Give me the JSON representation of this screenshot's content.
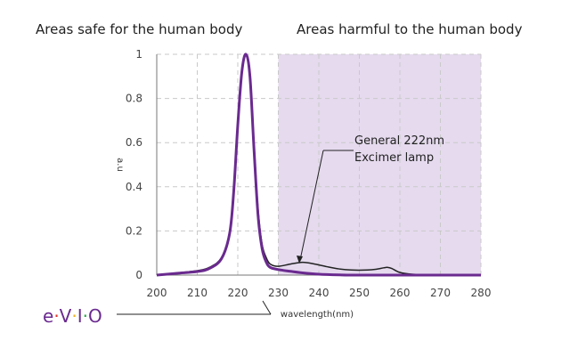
{
  "chart_data": {
    "type": "line",
    "x_ticks": [
      200,
      210,
      220,
      230,
      240,
      250,
      260,
      270,
      280
    ],
    "y_ticks": [
      0,
      0.2,
      0.4,
      0.6,
      0.8,
      1
    ],
    "xlim": [
      200,
      280
    ],
    "ylim": [
      0,
      1
    ],
    "xlabel": "wavelength(nm)",
    "ylabel": "a.u",
    "grid": true,
    "harmful_region": [
      230,
      280
    ],
    "region_labels": {
      "safe": "Areas safe for the human body",
      "harmful": "Areas harmful to the human body"
    },
    "series": [
      {
        "name": "General 222nm Excimer lamp",
        "color": "#222222",
        "points": [
          [
            200,
            0.0
          ],
          [
            205,
            0.01
          ],
          [
            210,
            0.02
          ],
          [
            213,
            0.035
          ],
          [
            216,
            0.08
          ],
          [
            218,
            0.2
          ],
          [
            219,
            0.4
          ],
          [
            220,
            0.7
          ],
          [
            221,
            0.93
          ],
          [
            222,
            1.0
          ],
          [
            223,
            0.92
          ],
          [
            224,
            0.6
          ],
          [
            225,
            0.3
          ],
          [
            226,
            0.14
          ],
          [
            227,
            0.08
          ],
          [
            228,
            0.05
          ],
          [
            230,
            0.04
          ],
          [
            233,
            0.05
          ],
          [
            236,
            0.058
          ],
          [
            239,
            0.05
          ],
          [
            242,
            0.038
          ],
          [
            245,
            0.028
          ],
          [
            248,
            0.023
          ],
          [
            252,
            0.023
          ],
          [
            254,
            0.026
          ],
          [
            256,
            0.033
          ],
          [
            257,
            0.035
          ],
          [
            258,
            0.03
          ],
          [
            260,
            0.012
          ],
          [
            263,
            0.004
          ],
          [
            268,
            0.001
          ],
          [
            280,
            0.0
          ]
        ]
      },
      {
        "color": "#6a2a8f",
        "points": [
          [
            200,
            0.0
          ],
          [
            205,
            0.008
          ],
          [
            210,
            0.016
          ],
          [
            213,
            0.03
          ],
          [
            216,
            0.075
          ],
          [
            218,
            0.19
          ],
          [
            219,
            0.38
          ],
          [
            220,
            0.68
          ],
          [
            221,
            0.92
          ],
          [
            222,
            1.0
          ],
          [
            223,
            0.9
          ],
          [
            224,
            0.57
          ],
          [
            225,
            0.27
          ],
          [
            226,
            0.12
          ],
          [
            227,
            0.06
          ],
          [
            228,
            0.035
          ],
          [
            230,
            0.025
          ],
          [
            233,
            0.017
          ],
          [
            236,
            0.01
          ],
          [
            240,
            0.004
          ],
          [
            245,
            0.001
          ],
          [
            250,
            0.0
          ],
          [
            280,
            0.0
          ]
        ]
      }
    ]
  },
  "annotation": {
    "line1": "General 222nm",
    "line2": "Excimer lamp"
  },
  "logo": {
    "text": "e·V·I·O",
    "colors": {
      "main": "#6a2a8f",
      "dot_red": "#e63329",
      "dot_yellow": "#f2b01e",
      "dot_green": "#2aa84a",
      "dot_blue": "#2f7fd6"
    }
  },
  "colors": {
    "harmful_fill": "#e5daee",
    "grid": "#c9c9c9",
    "axis": "#777777"
  }
}
